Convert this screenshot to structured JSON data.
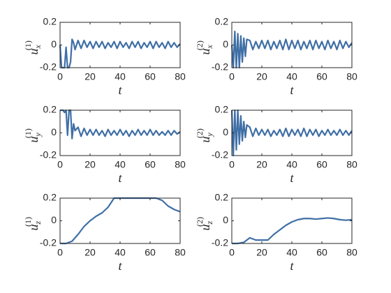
{
  "chart_data": [
    {
      "type": "line",
      "xlabel": "t",
      "ylabel": {
        "base": "u",
        "sub": "x",
        "sup": "(1)"
      },
      "xlim": [
        0,
        80
      ],
      "xticks": [
        0,
        20,
        40,
        60,
        80
      ],
      "ylim": [
        -0.2,
        0.2
      ],
      "yticks": [
        -0.2,
        0,
        0.2
      ],
      "x": [
        0,
        1,
        2,
        3,
        4,
        5,
        6,
        7,
        8,
        9,
        10,
        12,
        14,
        16,
        18,
        20,
        22,
        24,
        26,
        28,
        30,
        32,
        34,
        36,
        38,
        40,
        42,
        44,
        46,
        48,
        50,
        52,
        54,
        56,
        58,
        60,
        62,
        64,
        66,
        68,
        70,
        72,
        74,
        76,
        78,
        80
      ],
      "series": [
        {
          "color": "#3f6fa6",
          "values": [
            0,
            -0.2,
            -0.2,
            -0.2,
            -0.02,
            -0.2,
            -0.2,
            -0.15,
            0.05,
            0.02,
            -0.04,
            0.04,
            -0.03,
            0.04,
            -0.02,
            0.03,
            -0.03,
            0.03,
            -0.02,
            0.03,
            -0.03,
            0.02,
            -0.02,
            0.03,
            -0.03,
            0.03,
            -0.02,
            0.02,
            -0.03,
            0.03,
            -0.02,
            0.03,
            -0.03,
            0.02,
            -0.02,
            0.03,
            -0.03,
            0.03,
            -0.02,
            0.02,
            -0.03,
            0.03,
            -0.02,
            0.02,
            -0.02,
            0.01
          ]
        }
      ]
    },
    {
      "type": "line",
      "xlabel": "t",
      "ylabel": {
        "base": "u",
        "sub": "x",
        "sup": "(2)"
      },
      "xlim": [
        0,
        80
      ],
      "xticks": [
        0,
        20,
        40,
        60,
        80
      ],
      "ylim": [
        -0.2,
        0.2
      ],
      "yticks": [
        -0.2,
        0,
        0.2
      ],
      "x": [
        0,
        1,
        2,
        3,
        4,
        5,
        6,
        7,
        8,
        9,
        10,
        12,
        14,
        16,
        18,
        20,
        22,
        24,
        26,
        28,
        30,
        32,
        34,
        36,
        38,
        40,
        42,
        44,
        46,
        48,
        50,
        52,
        54,
        56,
        58,
        60,
        62,
        64,
        66,
        68,
        70,
        72,
        74,
        76,
        78,
        80
      ],
      "series": [
        {
          "color": "#3f6fa6",
          "values": [
            0,
            -0.2,
            0.12,
            -0.2,
            0.1,
            -0.2,
            0.08,
            -0.15,
            0.06,
            -0.1,
            0.05,
            0.04,
            -0.04,
            0.03,
            -0.03,
            0.04,
            -0.03,
            0.04,
            -0.04,
            0.03,
            -0.03,
            0.04,
            -0.04,
            0.05,
            -0.04,
            0.04,
            -0.03,
            0.04,
            -0.04,
            0.03,
            -0.03,
            0.04,
            -0.04,
            0.04,
            -0.03,
            0.03,
            -0.04,
            0.04,
            -0.03,
            0.03,
            -0.04,
            0.04,
            -0.03,
            0.03,
            -0.02,
            0.02
          ]
        }
      ]
    },
    {
      "type": "line",
      "xlabel": "t",
      "ylabel": {
        "base": "u",
        "sub": "y",
        "sup": "(1)"
      },
      "xlim": [
        0,
        80
      ],
      "xticks": [
        0,
        20,
        40,
        60,
        80
      ],
      "ylim": [
        -0.2,
        0.2
      ],
      "yticks": [
        -0.2,
        0,
        0.2
      ],
      "x": [
        0,
        1,
        2,
        3,
        4,
        5,
        6,
        7,
        8,
        9,
        10,
        12,
        14,
        16,
        18,
        20,
        22,
        24,
        26,
        28,
        30,
        32,
        34,
        36,
        38,
        40,
        42,
        44,
        46,
        48,
        50,
        52,
        54,
        56,
        58,
        60,
        62,
        64,
        66,
        68,
        70,
        72,
        74,
        76,
        78,
        80
      ],
      "series": [
        {
          "color": "#3f6fa6",
          "values": [
            0.2,
            0.2,
            0.2,
            0.18,
            0.2,
            -0.02,
            0.2,
            0.2,
            -0.05,
            0.08,
            0.02,
            0.05,
            -0.03,
            0.04,
            -0.02,
            0.03,
            -0.02,
            0.03,
            -0.02,
            0.02,
            -0.03,
            0.03,
            -0.02,
            0.02,
            -0.02,
            0.03,
            -0.02,
            0.02,
            -0.03,
            0.02,
            -0.02,
            0.03,
            -0.02,
            0.02,
            -0.02,
            0.03,
            -0.02,
            0.02,
            -0.02,
            0.01,
            -0.02,
            0.02,
            -0.02,
            0.02,
            -0.01,
            0.01
          ]
        }
      ]
    },
    {
      "type": "line",
      "xlabel": "t",
      "ylabel": {
        "base": "u",
        "sub": "y",
        "sup": "(2)"
      },
      "xlim": [
        0,
        80
      ],
      "xticks": [
        0,
        20,
        40,
        60,
        80
      ],
      "ylim": [
        -0.2,
        0.2
      ],
      "yticks": [
        -0.2,
        0,
        0.2
      ],
      "x": [
        0,
        1,
        2,
        3,
        4,
        5,
        6,
        7,
        8,
        9,
        10,
        12,
        14,
        16,
        18,
        20,
        22,
        24,
        26,
        28,
        30,
        32,
        34,
        36,
        38,
        40,
        42,
        44,
        46,
        48,
        50,
        52,
        54,
        56,
        58,
        60,
        62,
        64,
        66,
        68,
        70,
        72,
        74,
        76,
        78,
        80
      ],
      "series": [
        {
          "color": "#3f6fa6",
          "values": [
            0.2,
            -0.2,
            0.2,
            -0.15,
            0.2,
            -0.1,
            0.15,
            -0.07,
            0.1,
            -0.04,
            0.07,
            0.05,
            -0.03,
            0.04,
            -0.02,
            0.03,
            -0.02,
            0.03,
            -0.03,
            0.02,
            -0.02,
            0.03,
            -0.03,
            0.04,
            -0.03,
            0.03,
            -0.02,
            0.03,
            -0.03,
            0.04,
            -0.03,
            0.03,
            -0.02,
            0.03,
            -0.03,
            0.02,
            -0.02,
            0.03,
            -0.02,
            0.02,
            -0.02,
            0.03,
            -0.02,
            0.02,
            -0.02,
            0.02
          ]
        }
      ]
    },
    {
      "type": "line",
      "xlabel": "t",
      "ylabel": {
        "base": "u",
        "sub": "z",
        "sup": "(1)"
      },
      "xlim": [
        0,
        80
      ],
      "xticks": [
        0,
        20,
        40,
        60,
        80
      ],
      "ylim": [
        -0.2,
        0.2
      ],
      "yticks": [
        -0.2,
        0,
        0.2
      ],
      "x": [
        0,
        4,
        8,
        12,
        16,
        20,
        24,
        28,
        32,
        36,
        40,
        44,
        48,
        52,
        56,
        60,
        64,
        68,
        72,
        76,
        80
      ],
      "series": [
        {
          "color": "#3f6fa6",
          "values": [
            -0.2,
            -0.2,
            -0.18,
            -0.12,
            -0.05,
            0,
            0.04,
            0.07,
            0.12,
            0.2,
            0.2,
            0.2,
            0.2,
            0.2,
            0.2,
            0.2,
            0.2,
            0.18,
            0.13,
            0.1,
            0.08
          ]
        }
      ]
    },
    {
      "type": "line",
      "xlabel": "t",
      "ylabel": {
        "base": "u",
        "sub": "z",
        "sup": "(2)"
      },
      "xlim": [
        0,
        80
      ],
      "xticks": [
        0,
        20,
        40,
        60,
        80
      ],
      "ylim": [
        -0.2,
        0.2
      ],
      "yticks": [
        -0.2,
        0,
        0.2
      ],
      "x": [
        0,
        4,
        8,
        12,
        16,
        20,
        24,
        28,
        32,
        36,
        40,
        44,
        48,
        52,
        56,
        60,
        64,
        68,
        72,
        76,
        80
      ],
      "series": [
        {
          "color": "#3f6fa6",
          "values": [
            -0.2,
            -0.2,
            -0.19,
            -0.15,
            -0.17,
            -0.17,
            -0.17,
            -0.12,
            -0.08,
            -0.04,
            -0.01,
            0.01,
            0.02,
            0.02,
            0.015,
            0.02,
            0.025,
            0.02,
            0.01,
            0.005,
            0.01
          ]
        }
      ]
    }
  ]
}
